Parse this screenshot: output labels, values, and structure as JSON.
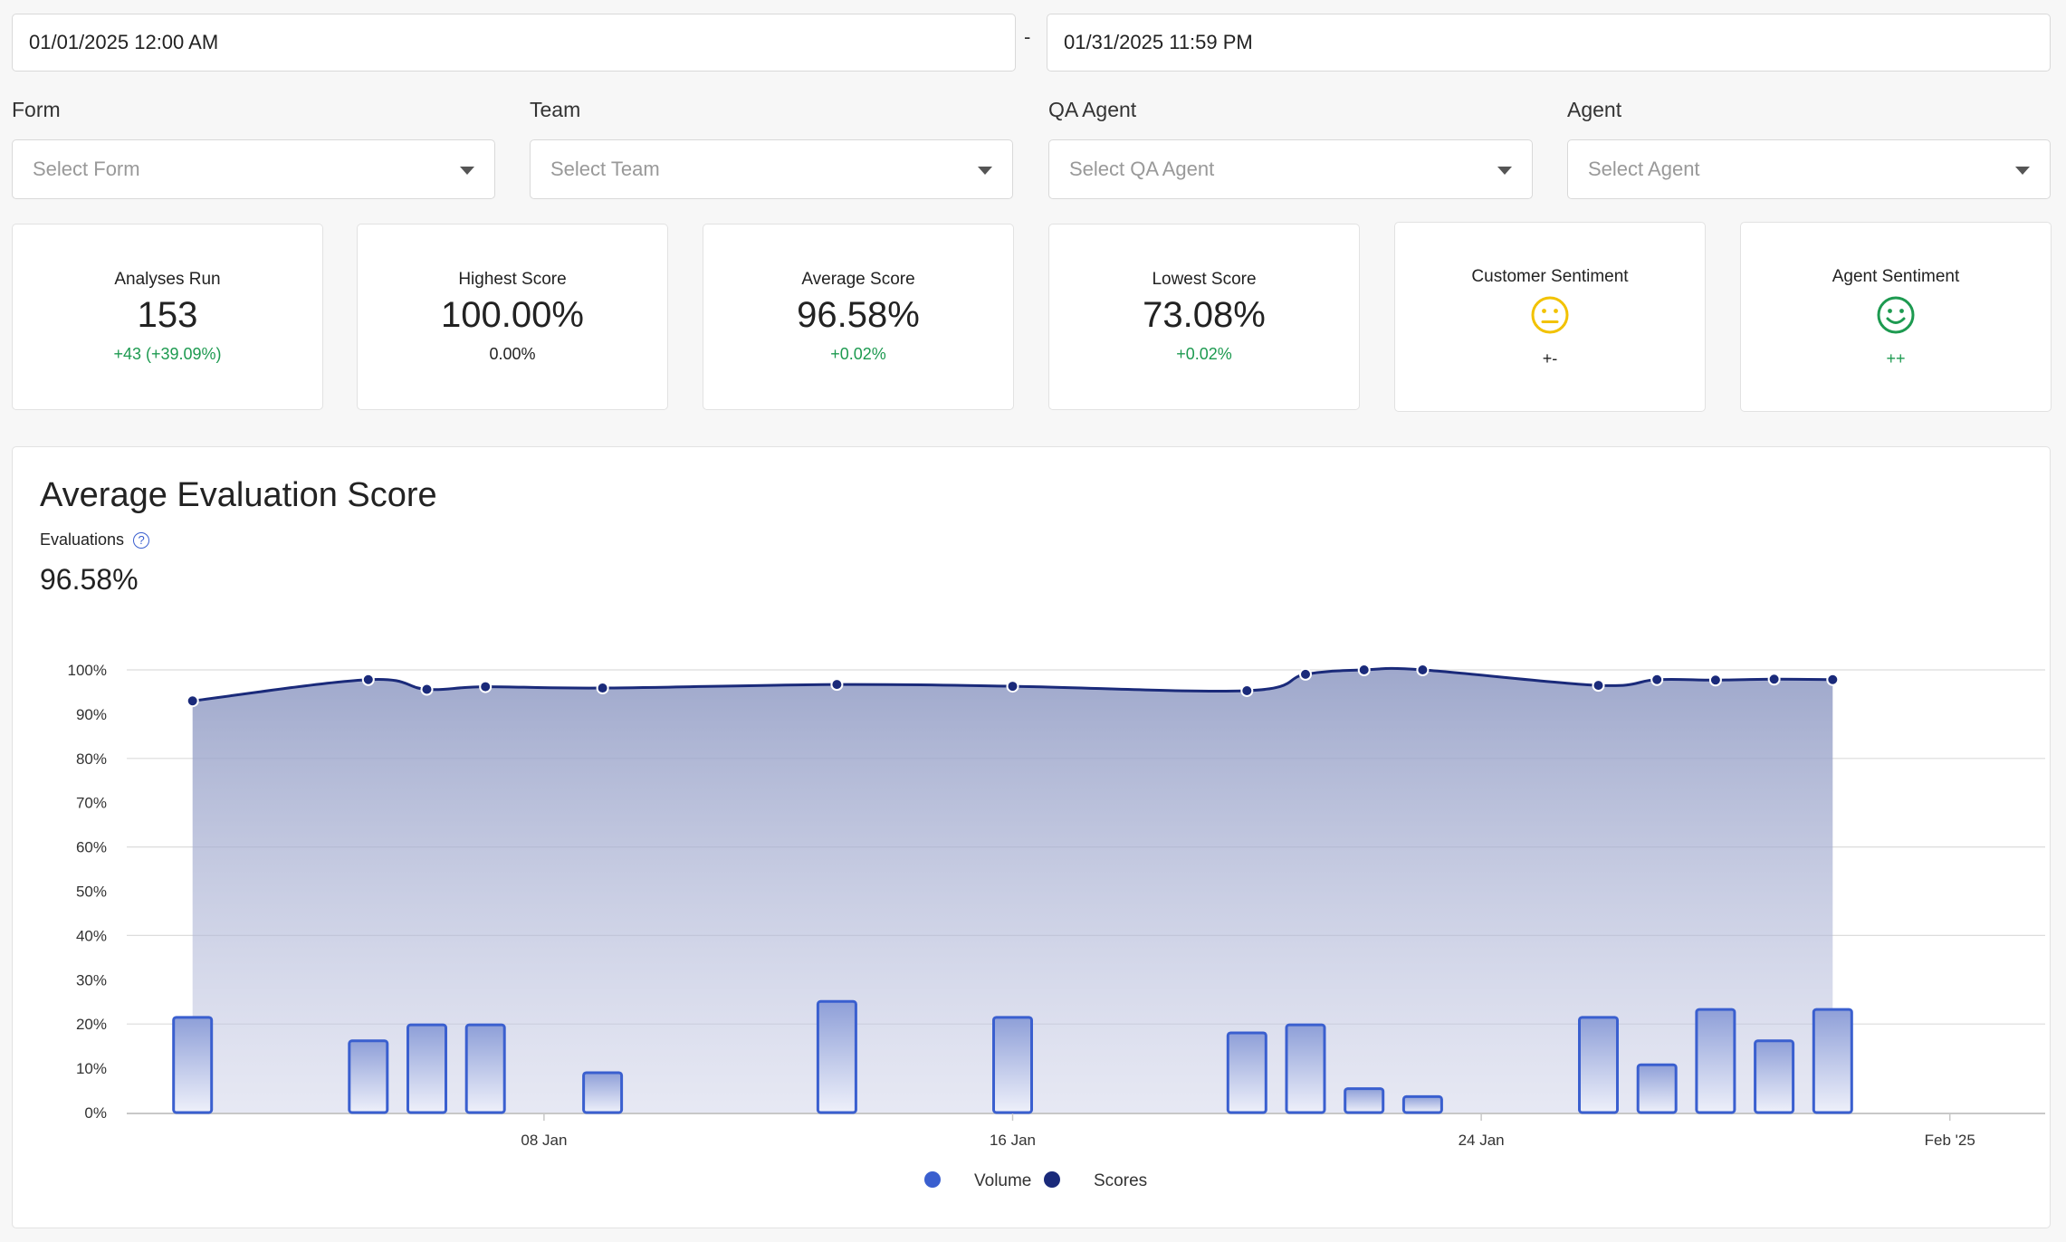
{
  "date_range": {
    "start": "01/01/2025 12:00 AM",
    "separator": "-",
    "end": "01/31/2025 11:59 PM"
  },
  "filters": [
    {
      "label": "Form",
      "placeholder": "Select Form"
    },
    {
      "label": "Team",
      "placeholder": "Select Team"
    },
    {
      "label": "QA Agent",
      "placeholder": "Select QA Agent"
    },
    {
      "label": "Agent",
      "placeholder": "Select Agent"
    }
  ],
  "stats": [
    {
      "title": "Analyses Run",
      "value": "153",
      "delta": "+43 (+39.09%)"
    },
    {
      "title": "Highest Score",
      "value": "100.00%",
      "delta": "0.00%"
    },
    {
      "title": "Average Score",
      "value": "96.58%",
      "delta": "+0.02%"
    },
    {
      "title": "Lowest Score",
      "value": "73.08%",
      "delta": "+0.02%"
    }
  ],
  "sentiments": [
    {
      "title": "Customer Sentiment",
      "icon": "neutral-face-icon",
      "color": "#f2c200",
      "value": "+-"
    },
    {
      "title": "Agent Sentiment",
      "icon": "smiley-face-icon",
      "color": "#1d9a50",
      "value": "++"
    }
  ],
  "chart_panel": {
    "title": "Average Evaluation Score",
    "subtitle": "Evaluations",
    "metric": "96.58%"
  },
  "chart_data": {
    "type": "line",
    "x_axis": {
      "type": "date",
      "range": [
        "2025-01-01",
        "2025-02-02"
      ],
      "tick_labels": [
        "08 Jan",
        "16 Jan",
        "24 Jan",
        "Feb '25"
      ]
    },
    "y_axis": {
      "range": [
        0,
        100
      ],
      "tick_labels": [
        "0%",
        "10%",
        "20%",
        "30%",
        "40%",
        "50%",
        "60%",
        "70%",
        "80%",
        "90%",
        "100%"
      ]
    },
    "grid": true,
    "legend": "bottom-center",
    "colors": {
      "volume": "#3a5fcf",
      "scores": "#1a2a7a"
    },
    "series": [
      {
        "name": "Scores",
        "type": "area",
        "points": [
          {
            "x": "2025-01-02",
            "y": 93
          },
          {
            "x": "2025-01-05",
            "y": 97.8
          },
          {
            "x": "2025-01-06",
            "y": 95.6
          },
          {
            "x": "2025-01-07",
            "y": 96.2
          },
          {
            "x": "2025-01-09",
            "y": 95.9
          },
          {
            "x": "2025-01-13",
            "y": 96.7
          },
          {
            "x": "2025-01-16",
            "y": 96.3
          },
          {
            "x": "2025-01-20",
            "y": 95.3
          },
          {
            "x": "2025-01-21",
            "y": 99
          },
          {
            "x": "2025-01-22",
            "y": 100
          },
          {
            "x": "2025-01-23",
            "y": 100
          },
          {
            "x": "2025-01-26",
            "y": 96.5
          },
          {
            "x": "2025-01-27",
            "y": 97.8
          },
          {
            "x": "2025-01-28",
            "y": 97.7
          },
          {
            "x": "2025-01-29",
            "y": 97.9
          },
          {
            "x": "2025-01-30",
            "y": 97.8
          }
        ]
      },
      {
        "name": "Volume",
        "type": "bar",
        "scale": "percent-axis",
        "points": [
          {
            "x": "2025-01-02",
            "y": 21.5
          },
          {
            "x": "2025-01-05",
            "y": 16.2
          },
          {
            "x": "2025-01-06",
            "y": 19.8
          },
          {
            "x": "2025-01-07",
            "y": 19.8
          },
          {
            "x": "2025-01-09",
            "y": 9
          },
          {
            "x": "2025-01-13",
            "y": 25.1
          },
          {
            "x": "2025-01-16",
            "y": 21.5
          },
          {
            "x": "2025-01-20",
            "y": 18
          },
          {
            "x": "2025-01-21",
            "y": 19.8
          },
          {
            "x": "2025-01-22",
            "y": 5.4
          },
          {
            "x": "2025-01-23",
            "y": 3.6
          },
          {
            "x": "2025-01-26",
            "y": 21.5
          },
          {
            "x": "2025-01-27",
            "y": 10.8
          },
          {
            "x": "2025-01-28",
            "y": 23.3
          },
          {
            "x": "2025-01-29",
            "y": 16.2
          },
          {
            "x": "2025-01-30",
            "y": 23.3
          }
        ]
      }
    ]
  }
}
